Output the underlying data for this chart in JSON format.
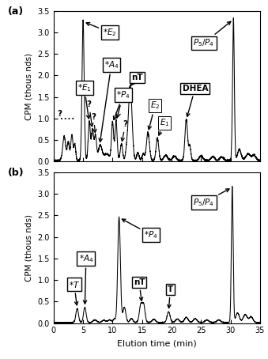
{
  "xlim": [
    0,
    35
  ],
  "ylim_a": [
    0,
    3.5
  ],
  "ylim_b": [
    0,
    3.5
  ],
  "yticks_a": [
    0,
    0.5,
    1.0,
    1.5,
    2.0,
    2.5,
    3.0,
    3.5
  ],
  "yticks_b": [
    0,
    0.5,
    1.0,
    1.5,
    2.0,
    2.5,
    3.0,
    3.5
  ],
  "xticks": [
    0,
    5,
    10,
    15,
    20,
    25,
    30,
    35
  ],
  "xlabel": "Elution time (min)",
  "ylabel": "CPM (thous nds)",
  "panel_a_label": "(a)",
  "panel_b_label": "(b)",
  "background_color": "#ffffff",
  "line_color": "#000000"
}
